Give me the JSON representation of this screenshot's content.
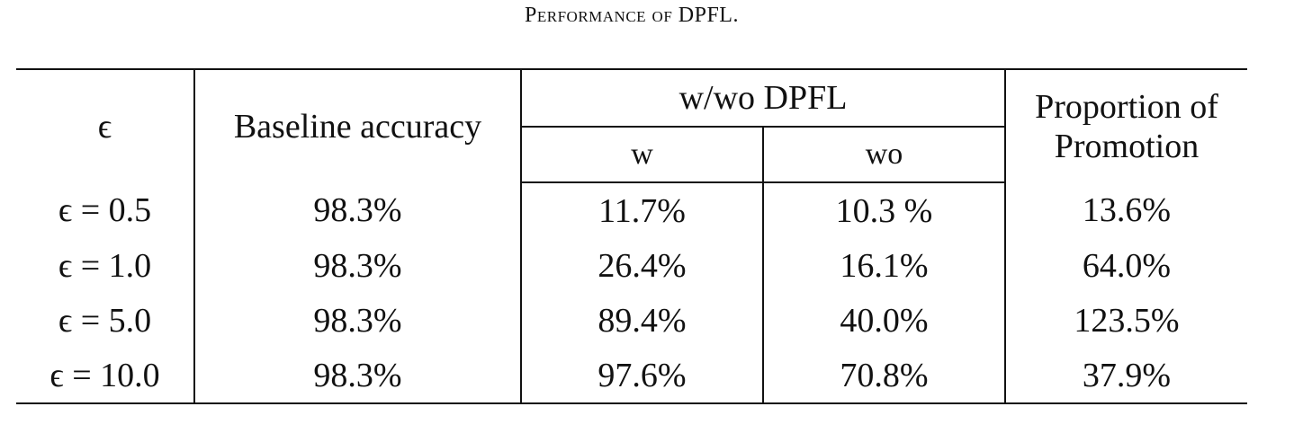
{
  "caption": "Performance of DPFL.",
  "headers": {
    "epsilon": "ϵ",
    "baseline": "Baseline accuracy",
    "group": "w/wo DPFL",
    "w": "w",
    "wo": "wo",
    "proportion": "Proportion of Promotion"
  },
  "rows": [
    {
      "epsilon": "ϵ = 0.5",
      "baseline": "98.3%",
      "w": "11.7%",
      "wo": "10.3 %",
      "proportion": "13.6%"
    },
    {
      "epsilon": "ϵ = 1.0",
      "baseline": "98.3%",
      "w": "26.4%",
      "wo": "16.1%",
      "proportion": "64.0%"
    },
    {
      "epsilon": "ϵ = 5.0",
      "baseline": "98.3%",
      "w": "89.4%",
      "wo": "40.0%",
      "proportion": "123.5%"
    },
    {
      "epsilon": "ϵ = 10.0",
      "baseline": "98.3%",
      "w": "97.6%",
      "wo": "70.8%",
      "proportion": "37.9%"
    }
  ]
}
